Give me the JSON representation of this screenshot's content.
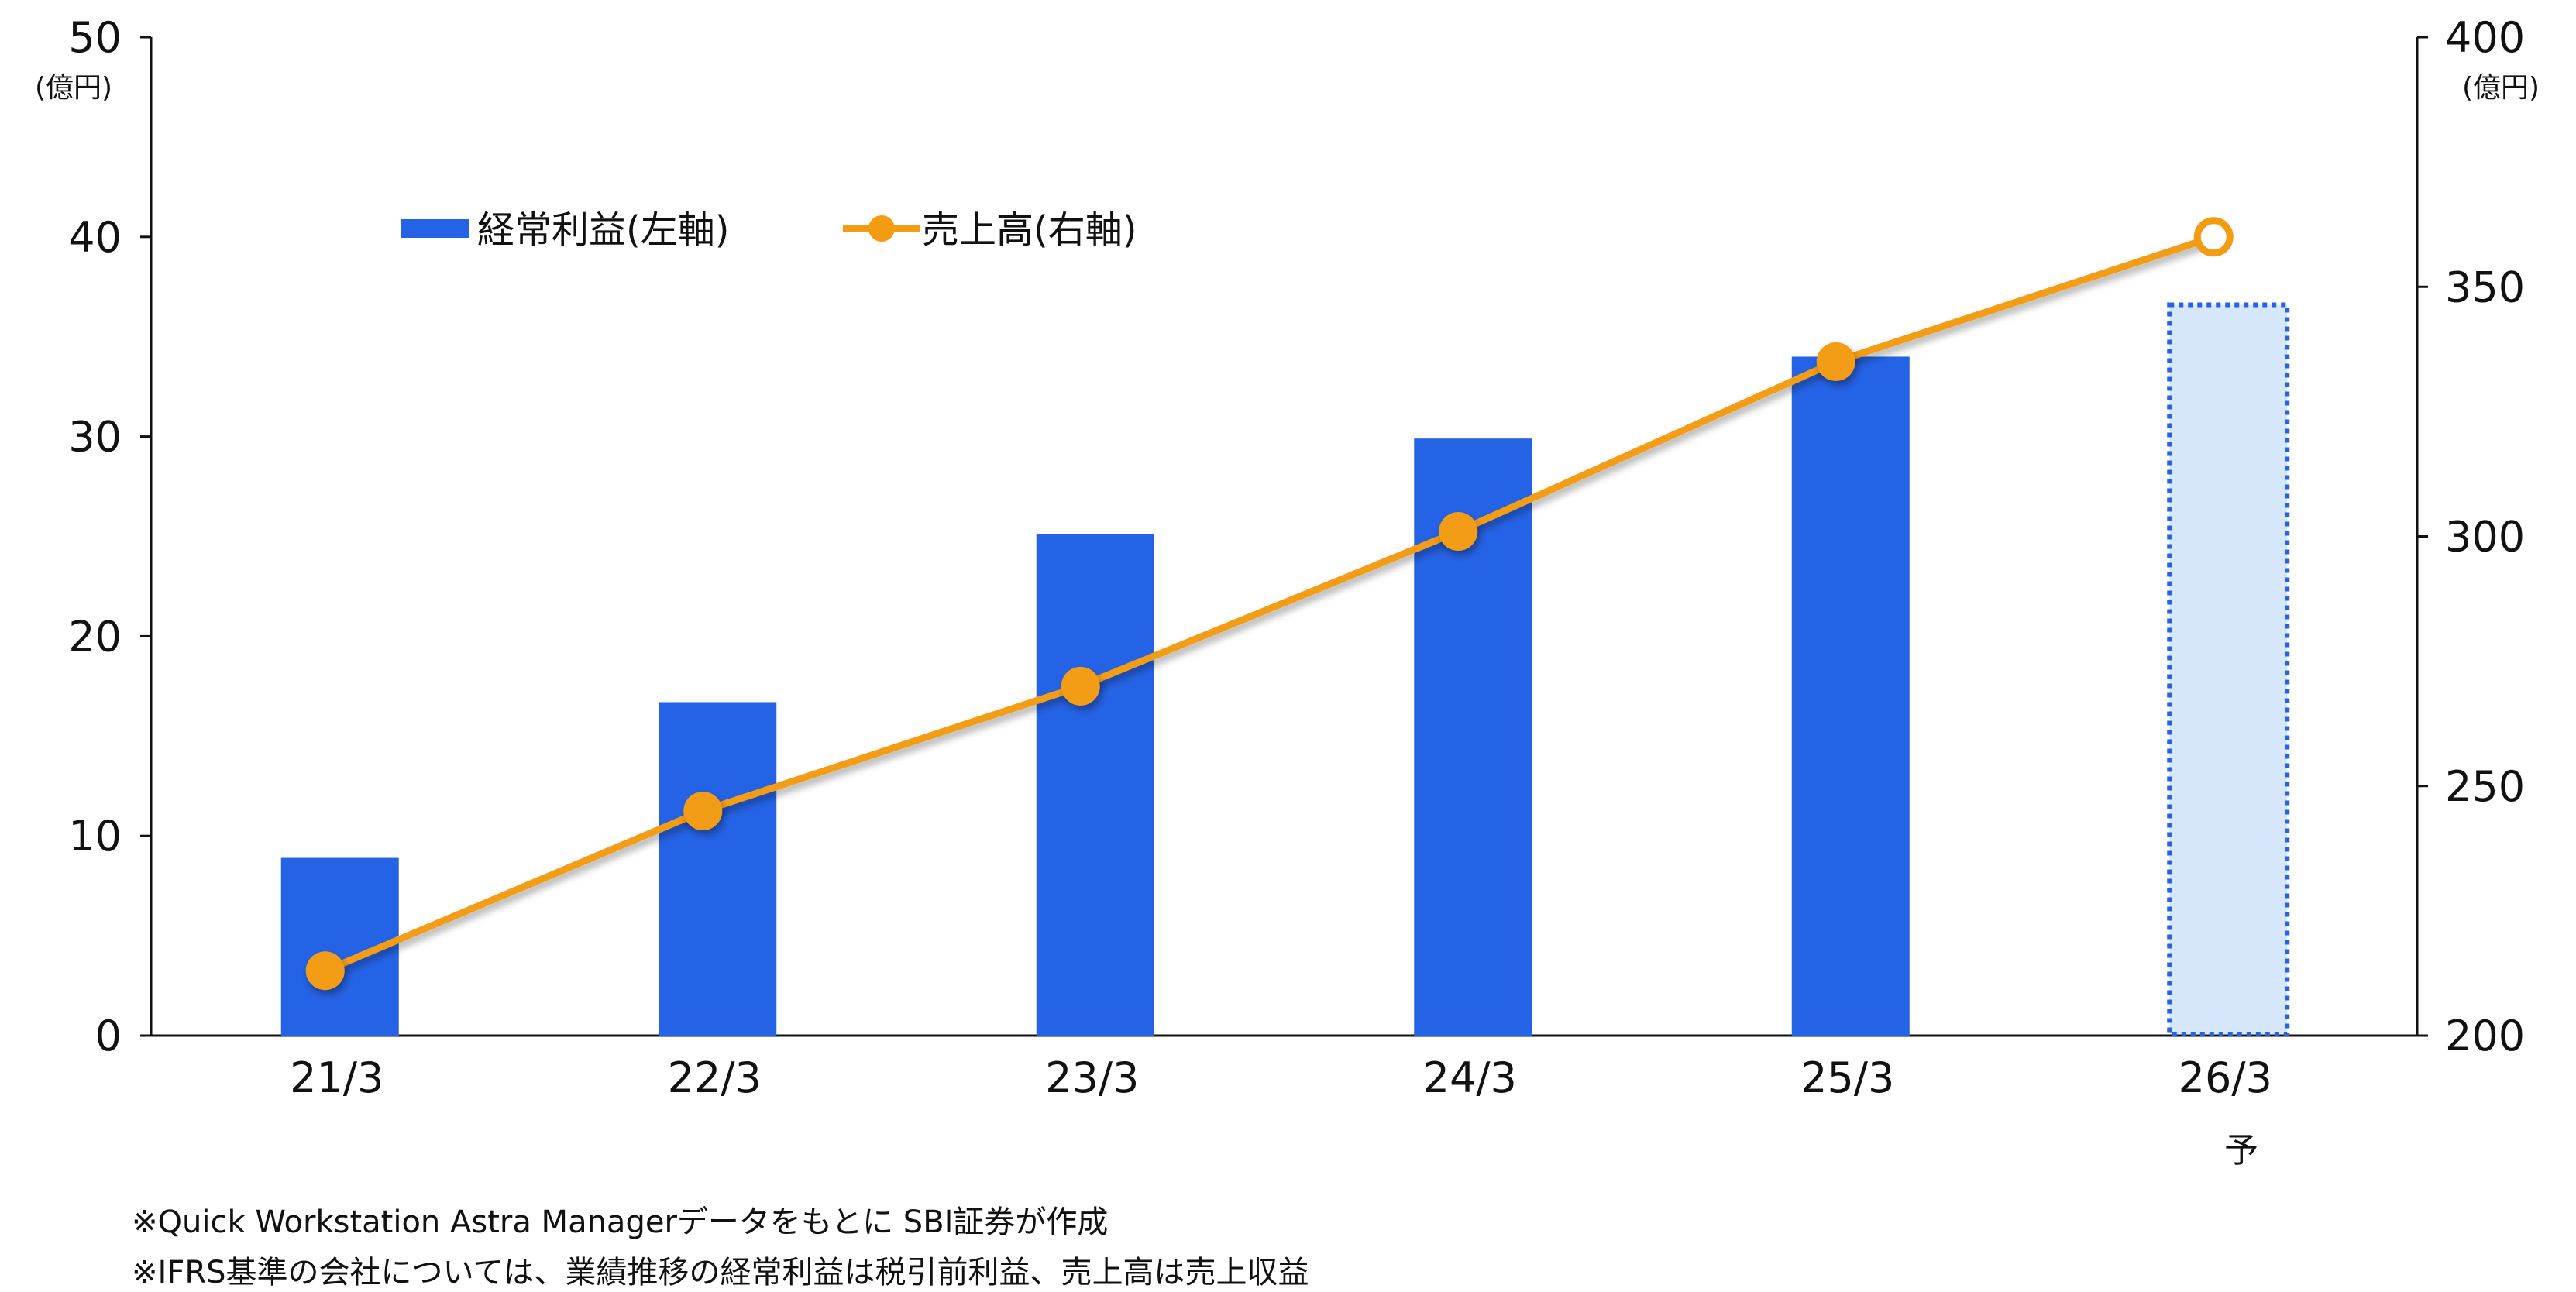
{
  "chart_data": {
    "type": "bar+line",
    "categories": [
      "21/3",
      "22/3",
      "23/3",
      "24/3",
      "25/3",
      "26/3"
    ],
    "forecast_marker": "予",
    "series": [
      {
        "name": "経常利益(左軸)",
        "type": "bar",
        "axis": "left",
        "values": [
          8.9,
          16.7,
          25.1,
          29.9,
          34.0,
          36.6
        ],
        "forecast_from_index": 5,
        "color": "#2563e6",
        "forecast_fill": "#d6e6fb",
        "forecast_border": "#2563e6"
      },
      {
        "name": "売上高(右軸)",
        "type": "line",
        "axis": "right",
        "values": [
          213,
          245,
          270,
          301,
          335,
          360
        ],
        "forecast_from_index": 5,
        "color": "#f39c12"
      }
    ],
    "y_left": {
      "unit": "(億円)",
      "ylim": [
        0,
        50
      ],
      "ticks": [
        "0",
        "10",
        "20",
        "30",
        "40",
        "50"
      ]
    },
    "y_right": {
      "unit": "(億円)",
      "ylim": [
        200,
        400
      ],
      "ticks": [
        "200",
        "250",
        "300",
        "350",
        "400"
      ]
    },
    "legend_position": "top-left",
    "grid": false
  },
  "notes": [
    "※Quick Workstation Astra Managerデータをもとに SBI証券が作成",
    "※IFRS基準の会社については、業績推移の経常利益は税引前利益、売上高は売上収益"
  ]
}
